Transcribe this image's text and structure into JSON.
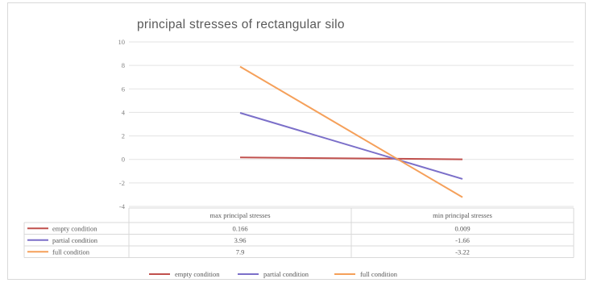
{
  "chart_data": {
    "type": "line",
    "title": "principal stresses of rectangular silo",
    "categories": [
      "max principal stresses",
      "min principal stresses"
    ],
    "ylim": [
      -4,
      10
    ],
    "yticks": [
      10,
      8,
      6,
      4,
      2,
      0,
      -2,
      -4
    ],
    "grid": true,
    "series": [
      {
        "name": "empty condition",
        "color": "#c0504d",
        "values": [
          0.166,
          0.009
        ],
        "labels": [
          "0.166",
          "0.009"
        ]
      },
      {
        "name": "partial condition",
        "color": "#7b6fc9",
        "values": [
          3.96,
          -1.66
        ],
        "labels": [
          "3.96",
          "-1.66"
        ]
      },
      {
        "name": "full condition",
        "color": "#f5a05a",
        "values": [
          7.9,
          -3.22
        ],
        "labels": [
          "7.9",
          "-3.22"
        ]
      }
    ],
    "legend": "bottom"
  }
}
